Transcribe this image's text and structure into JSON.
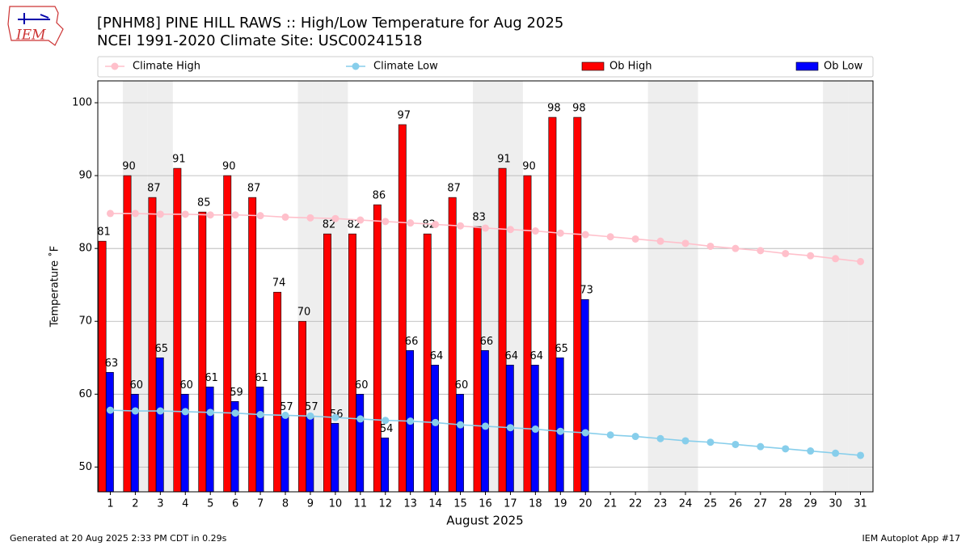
{
  "chart_data": {
    "type": "bar",
    "logo_text": "IEM",
    "title": "[PNHM8] PINE HILL RAWS :: High/Low Temperature for Aug 2025",
    "subtitle": "NCEI 1991-2020 Climate Site: USC00241518",
    "xlabel": "August 2025",
    "ylabel": "Temperature ˚F",
    "footer_left": "Generated at 20 Aug 2025 2:33 PM CDT in 0.29s",
    "footer_right": "IEM Autoplot App #17",
    "x": [
      1,
      2,
      3,
      4,
      5,
      6,
      7,
      8,
      9,
      10,
      11,
      12,
      13,
      14,
      15,
      16,
      17,
      18,
      19,
      20,
      21,
      22,
      23,
      24,
      25,
      26,
      27,
      28,
      29,
      30,
      31
    ],
    "xlim": [
      0.5,
      31.5
    ],
    "xticks": [
      1,
      2,
      3,
      4,
      5,
      6,
      7,
      8,
      9,
      10,
      11,
      12,
      13,
      14,
      15,
      16,
      17,
      18,
      19,
      20,
      21,
      22,
      23,
      24,
      25,
      26,
      27,
      28,
      29,
      30,
      31
    ],
    "ylim": [
      46.6,
      103
    ],
    "yticks": [
      50,
      60,
      70,
      80,
      90,
      100
    ],
    "grid": true,
    "shaded_days": [
      2,
      3,
      9,
      10,
      16,
      17,
      23,
      24,
      30,
      31
    ],
    "series": [
      {
        "name": "Climate High",
        "type": "line",
        "color": "#ffc0cb",
        "values": [
          84.8,
          84.8,
          84.7,
          84.7,
          84.6,
          84.6,
          84.5,
          84.3,
          84.2,
          84.1,
          83.9,
          83.7,
          83.5,
          83.3,
          83.1,
          82.8,
          82.6,
          82.4,
          82.1,
          81.9,
          81.6,
          81.3,
          81.0,
          80.7,
          80.3,
          80.0,
          79.7,
          79.3,
          79.0,
          78.6,
          78.2
        ]
      },
      {
        "name": "Climate Low",
        "type": "line",
        "color": "#87ceeb",
        "values": [
          57.8,
          57.7,
          57.7,
          57.6,
          57.5,
          57.4,
          57.2,
          57.1,
          57.0,
          56.8,
          56.6,
          56.4,
          56.3,
          56.1,
          55.8,
          55.6,
          55.4,
          55.2,
          54.9,
          54.7,
          54.4,
          54.2,
          53.9,
          53.6,
          53.4,
          53.1,
          52.8,
          52.5,
          52.2,
          51.9,
          51.6
        ]
      },
      {
        "name": "Ob High",
        "type": "bar",
        "color": "#ff0000",
        "values": [
          81,
          90,
          87,
          91,
          85,
          90,
          87,
          74,
          70,
          82,
          82,
          86,
          97,
          82,
          87,
          83,
          91,
          90,
          98,
          98,
          null,
          null,
          null,
          null,
          null,
          null,
          null,
          null,
          null,
          null,
          null
        ]
      },
      {
        "name": "Ob Low",
        "type": "bar",
        "color": "#0000ff",
        "values": [
          63,
          60,
          65,
          60,
          61,
          59,
          61,
          57,
          57,
          56,
          60,
          54,
          66,
          64,
          60,
          66,
          64,
          64,
          65,
          73,
          null,
          null,
          null,
          null,
          null,
          null,
          null,
          null,
          null,
          null,
          null
        ]
      }
    ]
  }
}
